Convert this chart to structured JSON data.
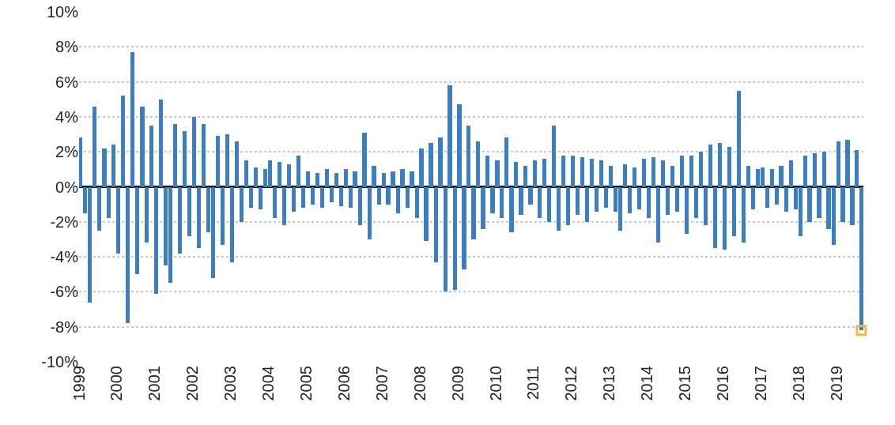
{
  "chart_data": {
    "type": "bar",
    "x": [
      "1999-01-15",
      "1999-03-01",
      "1999-04-15",
      "1999-06-01",
      "1999-07-15",
      "1999-09-01",
      "1999-10-15",
      "1999-12-01",
      "2000-01-15",
      "2000-03-01",
      "2000-04-15",
      "2000-06-01",
      "2000-07-15",
      "2000-09-01",
      "2000-10-15",
      "2000-12-01",
      "2001-01-15",
      "2001-03-01",
      "2001-04-15",
      "2001-06-01",
      "2001-07-15",
      "2001-09-01",
      "2001-10-15",
      "2001-12-01",
      "2002-01-15",
      "2002-03-01",
      "2002-04-15",
      "2002-06-01",
      "2002-07-15",
      "2002-09-01",
      "2002-10-15",
      "2002-12-01",
      "2003-01-15",
      "2003-03-01",
      "2003-04-15",
      "2003-06-01",
      "2003-07-15",
      "2003-09-01",
      "2003-10-15",
      "2003-12-01",
      "2004-01-15",
      "2004-03-01",
      "2004-04-15",
      "2004-06-01",
      "2004-07-15",
      "2004-09-01",
      "2004-10-15",
      "2004-12-01",
      "2005-01-15",
      "2005-03-01",
      "2005-04-15",
      "2005-06-01",
      "2005-07-15",
      "2005-09-01",
      "2005-10-15",
      "2005-12-01",
      "2006-01-15",
      "2006-03-01",
      "2006-04-15",
      "2006-06-01",
      "2006-07-15",
      "2006-09-01",
      "2006-10-15",
      "2006-12-01",
      "2007-01-15",
      "2007-03-01",
      "2007-04-15",
      "2007-06-01",
      "2007-07-15",
      "2007-09-01",
      "2007-10-15",
      "2007-12-01",
      "2008-01-15",
      "2008-03-01",
      "2008-04-15",
      "2008-06-01",
      "2008-07-15",
      "2008-09-01",
      "2008-10-15",
      "2008-12-01",
      "2009-01-15",
      "2009-03-01",
      "2009-04-15",
      "2009-06-01",
      "2009-07-15",
      "2009-09-01",
      "2009-10-15",
      "2009-12-01",
      "2010-01-15",
      "2010-03-01",
      "2010-04-15",
      "2010-06-01",
      "2010-07-15",
      "2010-09-01",
      "2010-10-15",
      "2010-12-01",
      "2011-01-15",
      "2011-03-01",
      "2011-04-15",
      "2011-06-01",
      "2011-07-15",
      "2011-09-01",
      "2011-10-15",
      "2011-12-01",
      "2012-01-15",
      "2012-03-01",
      "2012-04-15",
      "2012-06-01",
      "2012-07-15",
      "2012-09-01",
      "2012-10-15",
      "2012-12-01",
      "2013-01-15",
      "2013-03-01",
      "2013-04-15",
      "2013-06-01",
      "2013-07-15",
      "2013-09-01",
      "2013-10-15",
      "2013-12-01",
      "2014-01-15",
      "2014-03-01",
      "2014-04-15",
      "2014-06-01",
      "2014-07-15",
      "2014-09-01",
      "2014-10-15",
      "2014-12-01",
      "2015-01-15",
      "2015-03-01",
      "2015-04-15",
      "2015-06-01",
      "2015-07-15",
      "2015-09-01",
      "2015-10-15",
      "2015-12-01",
      "2016-01-15",
      "2016-03-01",
      "2016-04-15",
      "2016-06-01",
      "2016-07-15",
      "2016-09-01",
      "2016-10-15",
      "2016-12-01",
      "2017-01-15",
      "2017-03-01",
      "2017-04-15",
      "2017-06-01",
      "2017-07-15",
      "2017-09-01",
      "2017-10-15",
      "2017-12-01",
      "2018-01-15",
      "2018-03-01",
      "2018-04-15",
      "2018-06-01",
      "2018-07-15",
      "2018-09-01",
      "2018-10-15",
      "2018-12-01",
      "2019-01-15",
      "2019-03-01",
      "2019-04-15",
      "2019-06-01",
      "2019-07-15",
      "2019-08-26"
    ],
    "series": [
      {
        "color": "#3a7fc1",
        "values": [
          2.8,
          -1.5,
          -6.6,
          4.6,
          -2.5,
          2.2,
          -1.8,
          2.4,
          -3.8,
          5.2,
          -7.8,
          7.7,
          -5.0,
          4.6,
          -3.2,
          3.5,
          -6.1,
          5.0,
          -4.5,
          -5.5,
          3.6,
          -3.8,
          3.2,
          -2.8,
          4.0,
          -3.5,
          3.6,
          -2.6,
          -5.2,
          2.9,
          -3.3,
          3.0,
          -4.3,
          2.6,
          -2.0,
          1.5,
          -1.2,
          1.1,
          -1.3,
          1.0,
          1.5,
          -1.8,
          1.4,
          -2.2,
          1.3,
          -1.4,
          1.8,
          -1.2,
          0.9,
          -1.0,
          0.8,
          -1.2,
          1.0,
          -0.9,
          0.8,
          -1.1,
          1.0,
          -1.2,
          0.9,
          -2.2,
          3.1,
          -3.0,
          1.2,
          -1.0,
          0.8,
          -1.0,
          0.9,
          -1.5,
          1.0,
          -1.2,
          0.9,
          -1.8,
          2.2,
          -3.1,
          2.5,
          -4.3,
          2.8,
          -6.0,
          5.8,
          -5.9,
          4.7,
          -4.7,
          3.5,
          -3.0,
          2.6,
          -2.4,
          1.8,
          -1.5,
          1.5,
          -1.8,
          2.8,
          -2.6,
          1.4,
          -1.6,
          1.2,
          -1.0,
          1.5,
          -1.8,
          1.6,
          -2.0,
          3.5,
          -2.5,
          1.8,
          -2.2,
          1.8,
          -1.6,
          1.7,
          -2.0,
          1.6,
          -1.4,
          1.5,
          -1.2,
          1.2,
          -1.4,
          -2.5,
          1.3,
          -1.5,
          1.1,
          -1.3,
          1.6,
          -1.8,
          1.7,
          -3.2,
          1.5,
          -1.6,
          1.2,
          -1.4,
          1.8,
          -2.7,
          1.8,
          -1.8,
          2.0,
          -2.2,
          2.4,
          -3.5,
          2.5,
          -3.6,
          2.3,
          -2.8,
          5.5,
          -3.2,
          1.2,
          -1.3,
          1.0,
          1.1,
          -1.2,
          1.0,
          -1.0,
          1.2,
          -1.4,
          1.5,
          -1.3,
          -2.8,
          1.8,
          -2.0,
          1.9,
          -1.8,
          2.0,
          -2.4,
          -3.3,
          2.6,
          -2.0,
          2.7,
          -2.2,
          2.1,
          -8.2
        ]
      },
      {
        "type": "scatter",
        "marker": "square",
        "color": "#f5b942",
        "x": [
          "2019-08-26"
        ],
        "values": [
          -8.2
        ]
      }
    ],
    "xlim": [
      "1999-01-01",
      "2019-09-15"
    ],
    "xticks": [
      "1999",
      "2000",
      "2001",
      "2002",
      "2003",
      "2004",
      "2005",
      "2006",
      "2007",
      "2008",
      "2009",
      "2010",
      "2011",
      "2012",
      "2013",
      "2014",
      "2015",
      "2016",
      "2017",
      "2018",
      "2019"
    ],
    "ylim": [
      -10,
      10
    ],
    "yticks": [
      {
        "value": -10,
        "label": "-10%"
      },
      {
        "value": -8,
        "label": "-8%"
      },
      {
        "value": -6,
        "label": "-6%"
      },
      {
        "value": -4,
        "label": "-4%"
      },
      {
        "value": -2,
        "label": "-2%"
      },
      {
        "value": 0,
        "label": "0%"
      },
      {
        "value": 2,
        "label": "2%"
      },
      {
        "value": 4,
        "label": "4%"
      },
      {
        "value": 6,
        "label": "6%"
      },
      {
        "value": 8,
        "label": "8%"
      },
      {
        "value": 10,
        "label": "10%"
      }
    ],
    "grid": "y"
  }
}
